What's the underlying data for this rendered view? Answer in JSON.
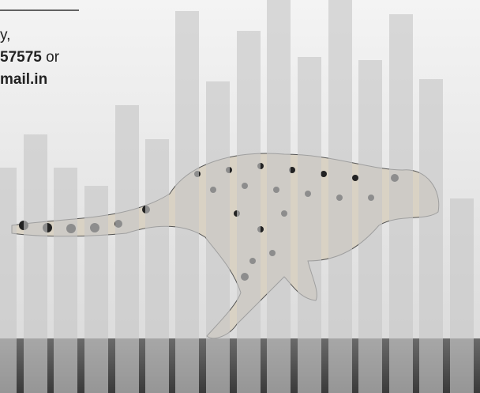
{
  "contact": {
    "line1": "y,",
    "number": "57575",
    "or": "or",
    "email": "mail.in"
  }
}
